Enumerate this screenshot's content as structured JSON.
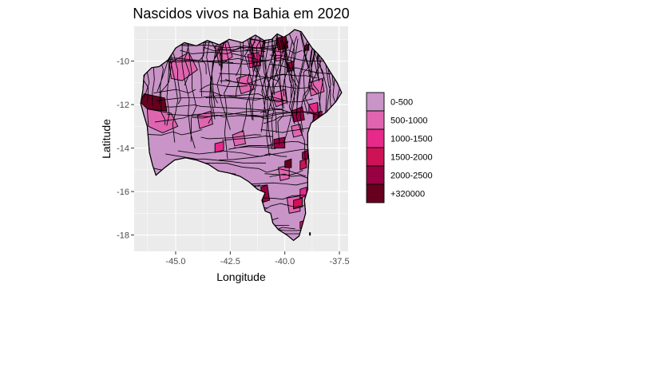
{
  "map": {
    "title": "Nascidos vivos na Bahia em 2020",
    "xlabel": "Longitude",
    "ylabel": "Latitude",
    "x_ticks": [
      {
        "value": -45.0,
        "label": "-45.0"
      },
      {
        "value": -42.5,
        "label": "-42.5"
      },
      {
        "value": -40.0,
        "label": "-40.0"
      },
      {
        "value": -37.5,
        "label": "-37.5"
      }
    ],
    "y_ticks": [
      {
        "value": -10,
        "label": "-10"
      },
      {
        "value": -12,
        "label": "-12"
      },
      {
        "value": -14,
        "label": "-14"
      },
      {
        "value": -16,
        "label": "-16"
      },
      {
        "value": -18,
        "label": "-18"
      }
    ],
    "xlim": [
      -46.9,
      -37.1
    ],
    "ylim": [
      -18.75,
      -8.4
    ],
    "panel_background": "#ebebeb",
    "gridline_color": "#ffffff",
    "region_border_color": "#000000",
    "legend": {
      "position": "right",
      "entries": [
        {
          "label": "0-500",
          "color": "#c994c7"
        },
        {
          "label": "500-1000",
          "color": "#df65b0"
        },
        {
          "label": "1000-1500",
          "color": "#e7298a"
        },
        {
          "label": "1500-2000",
          "color": "#ce1256"
        },
        {
          "label": "2000-2500",
          "color": "#980043"
        },
        {
          "label": "+320000",
          "color": "#67001f"
        }
      ]
    }
  }
}
